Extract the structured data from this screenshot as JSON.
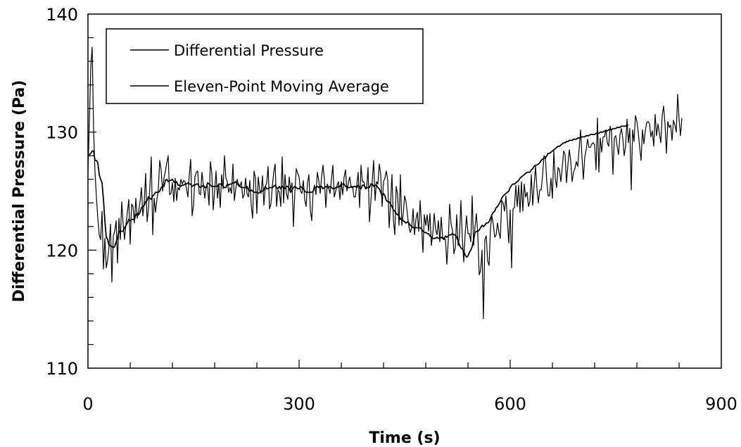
{
  "chart_data": {
    "type": "line",
    "title": "",
    "xlabel": "Time (s)",
    "ylabel": "Differential Pressure (Pa)",
    "xlim": [
      0,
      900
    ],
    "ylim": [
      110,
      140
    ],
    "x_ticks": [
      0,
      300,
      600,
      900
    ],
    "y_ticks": [
      110,
      120,
      130,
      140
    ],
    "x_tick_labels": [
      "0",
      "300",
      "600",
      "900"
    ],
    "y_tick_labels": [
      "110",
      "120",
      "130",
      "140"
    ],
    "x_minor_step": 60,
    "y_minor_step": 2,
    "grid": false,
    "legend": {
      "position": "top-left",
      "entries": [
        "Differential Pressure",
        "Eleven-Point Moving Average"
      ]
    },
    "series_color": "#000000",
    "series": [
      {
        "name": "Differential Pressure",
        "sample_interval_s": 2,
        "x_start": 0,
        "values": [
          126.6,
          130.9,
          135.5,
          137.2,
          130.2,
          126.6,
          124.5,
          122.7,
          121.3,
          120.9,
          123.3,
          118.4,
          121.0,
          118.5,
          119.2,
          120.3,
          122.2,
          117.3,
          121.2,
          121.6,
          122.5,
          118.9,
          122.7,
          120.9,
          124.1,
          122.2,
          120.9,
          122.2,
          123.2,
          124.3,
          120.5,
          123.9,
          123.7,
          122.3,
          124.4,
          122.7,
          123.3,
          124.1,
          125.3,
          122.9,
          124.1,
          126.5,
          122.4,
          123.5,
          125.4,
          127.9,
          121.3,
          124.4,
          123.2,
          124.3,
          125.2,
          127.6,
          126.8,
          125.0,
          126.1,
          126.7,
          127.4,
          128.0,
          124.7,
          124.8,
          125.7,
          124.1,
          126.1,
          124.2,
          125.3,
          125.1,
          126.0,
          125.6,
          125.9,
          125.8,
          125.2,
          124.5,
          126.4,
          127.7,
          122.9,
          123.8,
          126.2,
          126.6,
          126.7,
          124.8,
          124.7,
          126.6,
          125.5,
          124.4,
          125.4,
          125.4,
          123.8,
          127.5,
          126.5,
          123.4,
          125.0,
          126.7,
          124.4,
          125.6,
          123.6,
          126.4,
          125.2,
          128.0,
          126.1,
          125.8,
          124.9,
          125.3,
          124.8,
          127.3,
          124.2,
          125.2,
          126.0,
          125.4,
          125.4,
          125.8,
          124.4,
          124.7,
          126.1,
          124.8,
          124.5,
          125.9,
          123.8,
          122.7,
          126.7,
          126.1,
          123.1,
          126.2,
          125.1,
          124.8,
          126.3,
          123.8,
          125.4,
          125.7,
          127.1,
          123.5,
          123.9,
          125.4,
          126.6,
          127.3,
          123.7,
          125.1,
          124.9,
          123.7,
          127.9,
          124.0,
          126.4,
          124.8,
          124.3,
          126.2,
          125.1,
          125.7,
          122.0,
          124.9,
          126.9,
          126.5,
          126.2,
          125.0,
          124.8,
          125.9,
          124.3,
          123.7,
          125.7,
          126.4,
          123.4,
          122.5,
          125.0,
          125.5,
          124.7,
          126.6,
          125.9,
          124.8,
          126.2,
          127.2,
          126.0,
          123.6,
          125.6,
          125.3,
          124.8,
          126.0,
          127.2,
          124.5,
          125.0,
          125.5,
          125.8,
          124.3,
          125.8,
          124.7,
          126.2,
          126.8,
          125.0,
          125.7,
          126.2,
          125.3,
          125.4,
          124.5,
          124.5,
          125.5,
          126.6,
          123.6,
          127.2,
          125.8,
          125.8,
          125.2,
          125.2,
          127.0,
          122.4,
          124.1,
          125.9,
          127.6,
          124.2,
          125.8,
          125.6,
          127.3,
          126.4,
          123.7,
          125.8,
          126.1,
          126.7,
          125.9,
          121.9,
          123.9,
          126.4,
          122.6,
          121.3,
          125.4,
          124.7,
          122.1,
          126.4,
          122.1,
          123.1,
          124.6,
          124.1,
          123.0,
          122.0,
          121.5,
          121.9,
          123.5,
          121.3,
          122.6,
          123.2,
          121.6,
          124.2,
          122.2,
          119.8,
          123.0,
          122.1,
          123.0,
          121.6,
          123.1,
          120.4,
          121.4,
          123.1,
          121.8,
          121.3,
          122.5,
          120.7,
          122.8,
          121.1,
          121.0,
          120.9,
          118.8,
          120.8,
          123.9,
          122.2,
          121.7,
          119.7,
          120.2,
          123.0,
          120.4,
          121.2,
          124.2,
          121.0,
          119.0,
          121.4,
          122.9,
          121.4,
          121.4,
          120.7,
          124.6,
          120.4,
          122.0,
          123.1,
          121.3,
          117.9,
          118.3,
          120.0,
          114.2,
          120.9,
          121.2,
          119.1,
          118.7,
          121.9,
          122.9,
          122.2,
          121.1,
          121.3,
          122.3,
          121.5,
          121.0,
          124.2,
          124.0,
          123.3,
          124.6,
          122.5,
          120.6,
          123.4,
          118.5,
          123.5,
          123.6,
          125.5,
          123.7,
          125.5,
          123.2,
          125.8,
          123.3,
          125.6,
          124.5,
          124.9,
          123.7,
          124.1,
          126.4,
          123.8,
          125.5,
          127.1,
          125.2,
          124.0,
          125.1,
          125.1,
          126.3,
          128.0,
          127.9,
          125.8,
          124.6,
          124.6,
          126.1,
          124.4,
          128.4,
          126.1,
          125.3,
          127.0,
          126.8,
          125.8,
          127.0,
          128.4,
          128.1,
          125.7,
          127.2,
          128.5,
          127.6,
          125.8,
          126.6,
          126.9,
          127.5,
          127.1,
          128.6,
          130.2,
          127.9,
          126.0,
          127.9,
          128.5,
          129.4,
          128.7,
          128.7,
          129.0,
          129.1,
          128.9,
          126.8,
          131.2,
          126.6,
          129.5,
          128.3,
          129.6,
          129.6,
          130.2,
          129.1,
          128.8,
          130.5,
          130.0,
          126.4,
          129.5,
          129.7,
          128.8,
          128.1,
          129.8,
          130.3,
          129.5,
          128.0,
          128.8,
          131.1,
          129.1,
          130.3,
          125.1,
          130.2,
          129.2,
          131.4,
          130.9,
          130.0,
          128.7,
          127.6,
          130.2,
          129.0,
          130.1,
          130.8,
          130.9,
          130.7,
          129.6,
          130.1,
          128.8,
          131.5,
          129.7,
          130.7,
          129.9,
          129.1,
          131.4,
          132.2,
          130.7,
          128.2,
          130.9,
          130.4,
          130.6,
          129.3,
          131.0,
          130.6,
          130.0,
          133.2,
          131.1,
          129.7,
          131.2
        ]
      },
      {
        "name": "Eleven-Point Moving Average",
        "sample_interval_s": 2,
        "x_start": 0,
        "values": [
          128.1,
          128.1,
          128.2,
          128.4,
          128.4,
          127.6,
          127.6,
          127.4,
          126.4,
          126.0,
          125.7,
          124.3,
          122.5,
          121.1,
          120.9,
          120.4,
          120.4,
          120.3,
          120.2,
          120.3,
          120.7,
          121.0,
          121.6,
          121.6,
          121.6,
          121.6,
          121.9,
          122.1,
          122.3,
          122.6,
          122.5,
          122.6,
          122.6,
          122.6,
          123.0,
          123.1,
          123.0,
          123.2,
          123.6,
          123.7,
          123.8,
          124.1,
          124.2,
          124.5,
          124.4,
          124.3,
          124.6,
          124.7,
          124.9,
          124.9,
          124.9,
          125.0,
          125.3,
          125.4,
          125.4,
          125.9,
          126.0,
          125.8,
          125.9,
          125.9,
          126.0,
          125.8,
          125.7,
          125.8,
          125.5,
          125.5,
          125.4,
          125.5,
          125.5,
          125.6,
          125.6,
          125.7,
          125.6,
          125.6,
          125.4,
          125.5,
          125.5,
          125.6,
          125.6,
          125.4,
          125.3,
          125.4,
          125.5,
          125.3,
          125.3,
          125.7,
          125.6,
          125.5,
          125.4,
          125.4,
          125.4,
          125.4,
          125.4,
          125.6,
          125.6,
          125.6,
          125.4,
          125.3,
          125.3,
          125.6,
          125.5,
          125.6,
          125.6,
          125.7,
          125.7,
          125.8,
          125.6,
          125.6,
          125.4,
          125.3,
          125.3,
          125.3,
          125.3,
          125.4,
          125.1,
          125.0,
          125.1,
          125.0,
          124.9,
          124.9,
          124.9,
          124.8,
          124.9,
          125.0,
          125.0,
          125.1,
          125.4,
          125.2,
          125.2,
          125.3,
          125.3,
          125.3,
          125.4,
          125.5,
          125.3,
          125.2,
          125.4,
          125.2,
          125.4,
          125.3,
          125.2,
          125.4,
          125.4,
          125.2,
          124.9,
          125.1,
          125.3,
          125.4,
          125.3,
          125.2,
          125.2,
          125.4,
          125.3,
          125.2,
          125.0,
          124.9,
          124.9,
          124.9,
          124.9,
          124.9,
          125.0,
          125.3,
          125.3,
          125.4,
          125.3,
          125.4,
          125.4,
          125.2,
          125.3,
          125.4,
          125.3,
          125.3,
          125.4,
          125.3,
          125.2,
          125.2,
          125.3,
          125.3,
          125.4,
          125.4,
          125.6,
          125.6,
          125.6,
          125.4,
          125.4,
          125.3,
          125.3,
          125.4,
          125.3,
          125.4,
          125.4,
          125.3,
          125.5,
          125.3,
          125.2,
          125.5,
          125.5,
          125.3,
          125.3,
          125.3,
          125.3,
          125.6,
          125.6,
          125.4,
          125.5,
          125.5,
          125.3,
          125.2,
          124.9,
          124.6,
          124.8,
          124.6,
          124.2,
          124.1,
          124.1,
          123.9,
          123.7,
          123.4,
          123.3,
          123.1,
          123.0,
          122.9,
          122.6,
          122.7,
          122.5,
          122.4,
          122.3,
          122.4,
          122.3,
          122.1,
          122.0,
          121.9,
          121.9,
          121.9,
          121.9,
          121.9,
          121.9,
          121.8,
          121.6,
          121.5,
          121.5,
          121.4,
          121.4,
          121.2,
          121.1,
          121.0,
          121.0,
          121.0,
          121.1,
          121.0,
          121.0,
          121.1,
          121.0,
          120.9,
          121.2,
          121.1,
          121.2,
          121.3,
          121.3,
          121.4,
          121.3,
          121.3,
          121.1,
          120.8,
          120.4,
          120.2,
          120.1,
          119.9,
          119.6,
          119.4,
          119.5,
          119.8,
          120.0,
          120.3,
          120.9,
          121.5,
          121.6,
          121.6,
          121.7,
          121.9,
          122.1,
          122.0,
          122.1,
          122.3,
          122.3,
          122.4,
          122.7,
          123.0,
          123.2,
          123.3,
          123.6,
          123.7,
          123.9,
          124.1,
          124.4,
          124.6,
          124.7,
          124.8,
          124.9,
          125.0,
          125.3,
          125.5,
          125.6,
          125.6,
          125.7,
          125.8,
          125.9,
          126.1,
          126.2,
          126.3,
          126.4,
          126.5,
          126.6,
          126.6,
          126.6,
          126.8,
          126.9,
          127.1,
          127.2,
          127.2,
          127.3,
          127.4,
          127.6,
          127.7,
          127.8,
          127.8,
          128.0,
          128.2,
          128.2,
          128.3,
          128.4,
          128.5,
          128.6,
          128.7,
          128.8,
          128.8,
          128.9,
          129.0,
          129.1,
          129.1,
          129.2,
          129.2,
          129.3,
          129.3,
          129.3,
          129.4,
          129.4,
          129.4,
          129.5,
          129.5,
          129.5,
          129.6,
          129.6,
          129.6,
          129.7,
          129.7,
          129.7,
          129.8,
          129.8,
          129.8,
          129.8,
          129.9,
          129.9,
          129.9,
          130.0,
          130.0,
          130.0,
          130.1,
          130.1,
          130.1,
          130.2,
          130.2,
          130.2,
          130.3,
          130.3,
          130.3,
          130.4,
          130.4,
          130.4,
          130.5,
          130.5,
          130.5,
          130.5,
          130.6,
          130.6
        ]
      }
    ]
  }
}
